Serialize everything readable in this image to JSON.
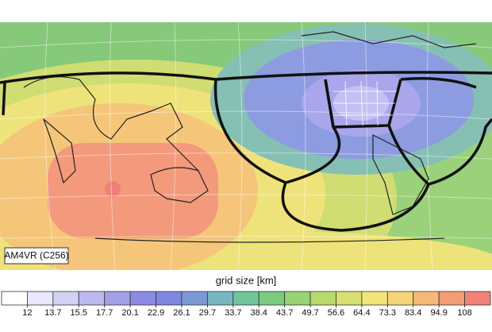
{
  "map": {
    "label": "AM4VR (C256)"
  },
  "colorbar": {
    "title": "grid size [km]",
    "ticks": [
      12,
      13.7,
      15.5,
      17.7,
      20.1,
      22.9,
      26.1,
      29.7,
      33.7,
      38.4,
      43.7,
      49.7,
      56.6,
      64.4,
      73.3,
      83.4,
      94.9,
      108
    ],
    "colors": [
      "#ffffff",
      "#e9e7fb",
      "#d4d1f6",
      "#bcb8f0",
      "#a3a0e9",
      "#8c8be3",
      "#7f87de",
      "#7b9ad4",
      "#77b6c0",
      "#70c69b",
      "#7bcc80",
      "#98d374",
      "#b8da6d",
      "#d8e070",
      "#f1e57a",
      "#f7d37a",
      "#f6b878",
      "#f39c75",
      "#f08278"
    ]
  }
}
